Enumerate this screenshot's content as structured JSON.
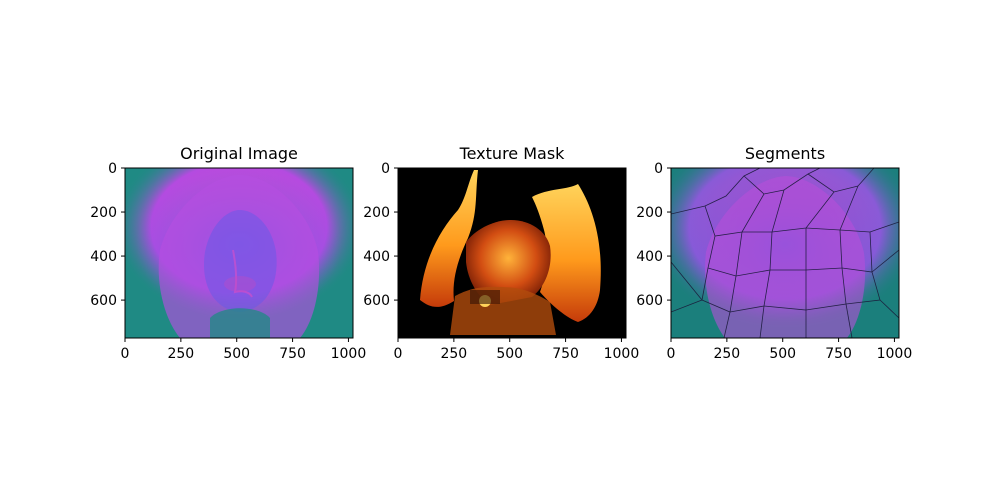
{
  "figure": {
    "panels": [
      {
        "id": "original",
        "title": "Original Image",
        "xticks": [
          "0",
          "250",
          "500",
          "750",
          "1000"
        ],
        "yticks": [
          "0",
          "200",
          "400",
          "600"
        ],
        "description_colors": {
          "background": "#1f8a84",
          "hair": "#d84fc8",
          "face": "#6a5ae8"
        }
      },
      {
        "id": "texture",
        "title": "Texture Mask",
        "xticks": [
          "0",
          "250",
          "500",
          "750",
          "1000"
        ],
        "yticks": [
          "0",
          "200",
          "400",
          "600"
        ],
        "description_colors": {
          "background": "#000000",
          "fire_light": "#ffd35a",
          "fire_dark": "#c53b0a"
        }
      },
      {
        "id": "segments",
        "title": "Segments",
        "xticks": [
          "0",
          "250",
          "500",
          "750",
          "1000"
        ],
        "yticks": [
          "0",
          "200",
          "400",
          "600"
        ],
        "description_colors": {
          "background": "#1b7f7c",
          "hair": "#c54bc1",
          "face": "#6b57df",
          "edges": "#1a1a3a"
        }
      }
    ]
  }
}
